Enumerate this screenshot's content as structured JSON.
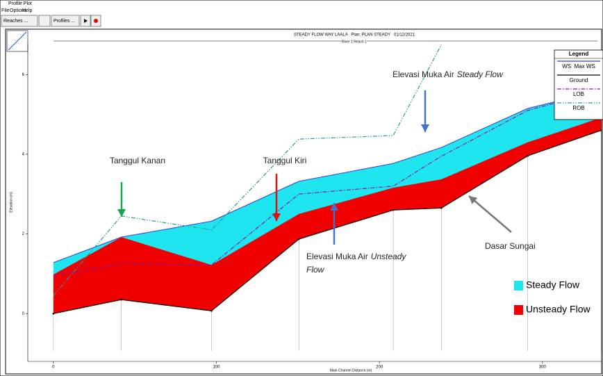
{
  "window": {
    "title": "Profile Plot",
    "menu": [
      "File",
      "Options",
      "Help"
    ],
    "toolbar": [
      "Reaches ...",
      "Profiles ..."
    ]
  },
  "chart_data": {
    "type": "area",
    "title": "STEADY FLOW WAY LAALA   Plan: PLAN STEADY   01/12/2021",
    "subtitle": "River 1 Reach 1",
    "x_label": "Main Channel Distance (m)",
    "y_label": "Elevation (m)",
    "x": [
      0,
      41.7,
      97,
      150.6,
      208.5,
      238,
      291,
      336
    ],
    "series": [
      {
        "name": "Steady Flow",
        "color": "#1ee5ee",
        "values": [
          1.28,
          1.92,
          2.32,
          3.32,
          3.77,
          4.17,
          5.15,
          5.6
        ]
      },
      {
        "name": "Unsteady Flow",
        "color": "#f00000",
        "values": [
          0.98,
          1.92,
          1.22,
          2.5,
          3.16,
          3.37,
          4.3,
          4.92
        ]
      },
      {
        "name": "Ground",
        "color": "#000000",
        "values": [
          0,
          0.35,
          0.07,
          1.87,
          2.6,
          2.65,
          3.96,
          4.6
        ]
      },
      {
        "name": "LOB",
        "color": "#8a1a9a",
        "values": [
          0.95,
          1.25,
          1.22,
          3.0,
          3.2,
          3.95,
          5.1,
          5.6
        ]
      },
      {
        "name": "ROB",
        "color": "#2a9a9a",
        "values": [
          0.45,
          2.45,
          2.1,
          4.38,
          4.47,
          6.75,
          null,
          null
        ]
      }
    ],
    "xlim": [
      -15.7,
      336.3
    ],
    "ylim": [
      -1.2,
      6.79
    ],
    "xticks": [
      0,
      100,
      200,
      300
    ],
    "yticks": [
      0,
      2,
      4,
      6
    ],
    "legend": {
      "title": "Legend",
      "entries": [
        "WS  Max WS",
        "Ground",
        "LOB",
        "ROB"
      ],
      "position": "upper right"
    },
    "annotations": [
      {
        "text": "Tanggul Kanan"
      },
      {
        "text": "Tanggul Kiri"
      },
      {
        "text": "Elevasi Muka Air",
        "emph": "Steady Flow"
      },
      {
        "text": "Elevasi Muka Air",
        "emph": "Unsteady",
        "emph2": "Flow"
      },
      {
        "text": "Dasar Sungai"
      }
    ]
  }
}
